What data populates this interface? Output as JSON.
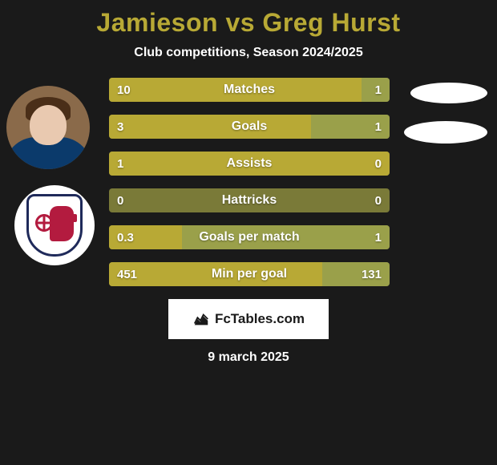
{
  "title": "Jamieson vs Greg Hurst",
  "subtitle": "Club competitions, Season 2024/2025",
  "colors": {
    "title": "#b8a935",
    "bar_left": "#b8a935",
    "bar_right": "#9aa04a",
    "bar_track": "#7a7a38",
    "background": "#1a1a1a"
  },
  "left_player": {
    "avatar_type": "person",
    "hair_color": "#4a2e18",
    "skin_color": "#e9c9b0",
    "shirt_color": "#0b3a6b",
    "bg_color": "#8a6a4a"
  },
  "left_crest": {
    "type": "club-crest",
    "shield_border": "#1f2a5a",
    "accent": "#b31b3f",
    "background": "#ffffff"
  },
  "right_placeholders": {
    "blob_color": "#ffffff"
  },
  "stats": [
    {
      "label": "Matches",
      "left_val": "10",
      "right_val": "1",
      "left_pct": 90,
      "right_pct": 10
    },
    {
      "label": "Goals",
      "left_val": "3",
      "right_val": "1",
      "left_pct": 72,
      "right_pct": 28
    },
    {
      "label": "Assists",
      "left_val": "1",
      "right_val": "0",
      "left_pct": 100,
      "right_pct": 0
    },
    {
      "label": "Hattricks",
      "left_val": "0",
      "right_val": "0",
      "left_pct": 0,
      "right_pct": 0
    },
    {
      "label": "Goals per match",
      "left_val": "0.3",
      "right_val": "1",
      "left_pct": 26,
      "right_pct": 74
    },
    {
      "label": "Min per goal",
      "left_val": "451",
      "right_val": "131",
      "left_pct": 76,
      "right_pct": 24
    }
  ],
  "footer": {
    "brand": "FcTables.com",
    "logo_color": "#1a1a1a"
  },
  "date": "9 march 2025"
}
